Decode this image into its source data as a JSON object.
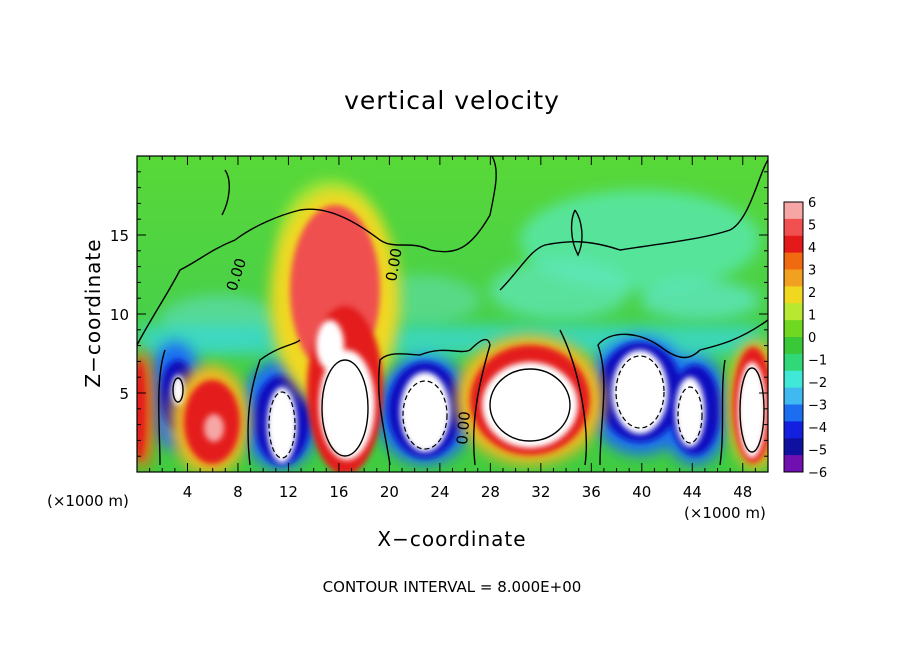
{
  "chart_data": {
    "type": "heatmap",
    "title": "vertical velocity",
    "xlabel": "X−coordinate",
    "ylabel": "Z−coordinate",
    "x_unit_label": "(×1000 m)",
    "x_unit_label_right": "(×1000 m)",
    "xlim": [
      0,
      50
    ],
    "ylim": [
      0,
      20
    ],
    "x_ticks": [
      4,
      8,
      12,
      16,
      20,
      24,
      28,
      32,
      36,
      40,
      44,
      48
    ],
    "y_ticks": [
      5,
      10,
      15
    ],
    "colorbar": {
      "min": -6,
      "max": 6,
      "tick_labels": [
        "6",
        "5",
        "4",
        "3",
        "2",
        "1",
        "0",
        "−1",
        "−2",
        "−3",
        "−4",
        "−5",
        "−6"
      ],
      "colors": [
        "#f7a6a6",
        "#f05050",
        "#e41a1a",
        "#f06a10",
        "#f2a020",
        "#f0d820",
        "#b8e830",
        "#70d820",
        "#38c838",
        "#30d878",
        "#40e8d8",
        "#40b8f0",
        "#1c6ef0",
        "#1420e0",
        "#1010a0",
        "#7010b0"
      ]
    },
    "contour_labels": [
      "0.00",
      "0.00",
      "0.00"
    ],
    "contour_interval_label": "CONTOUR INTERVAL = 8.000E+00"
  }
}
